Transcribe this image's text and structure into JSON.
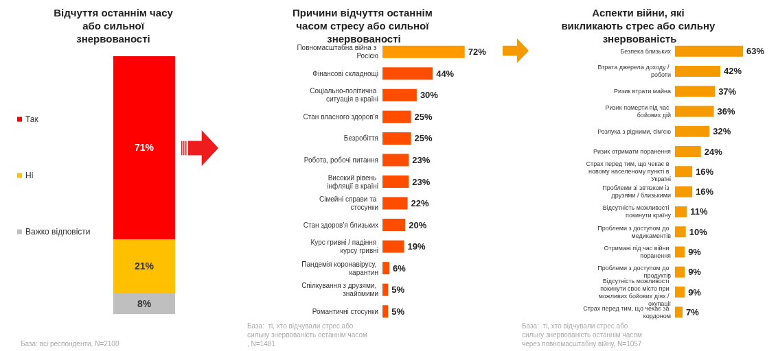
{
  "chart_data": [
    {
      "type": "bar",
      "title": "Відчуття останнім часу або сильної знервованості",
      "categories": [
        null
      ],
      "stacked": true,
      "legend": "left",
      "series": [
        {
          "name": "Важко відповісти",
          "color": "#bfbfbf",
          "values": [
            8
          ],
          "value_labels": [
            "8%"
          ]
        },
        {
          "name": "Ні",
          "color": "#ffc000",
          "values": [
            21
          ],
          "value_labels": [
            "21%"
          ]
        },
        {
          "name": "Так",
          "color": "#ff0000",
          "values": [
            71
          ],
          "value_labels": [
            "71%"
          ]
        }
      ],
      "annotations": [
        "База: всі респонденти, N=2100"
      ]
    },
    {
      "type": "bar",
      "orientation": "horizontal",
      "title": "Причини відчуття останнім часом стресу або сильної знервованості",
      "categories": [
        "Повномасштабна війна з Росією",
        "Фінансові складнощі",
        "Соціально-політична ситуація в країні",
        "Стан власного здоров'я",
        "Безробіття",
        "Робота, робочі питання",
        "Високий рівень інфляції в країні",
        "Сімейні справи та стосунки",
        "Стан здоров'я близьких",
        "Курс гривні / падіння курсу гривні",
        "Пандемія коронавірусу, карантин",
        "Спілкування з друзями, знайомими",
        "Романтичні стосунки"
      ],
      "values": [
        72,
        44,
        30,
        25,
        25,
        23,
        23,
        22,
        20,
        19,
        6,
        5,
        5
      ],
      "value_labels": [
        "72%",
        "44%",
        "30%",
        "25%",
        "25%",
        "23%",
        "23%",
        "22%",
        "20%",
        "19%",
        "6%",
        "5%",
        "5%"
      ],
      "colors": [
        "#ff9900",
        "#ff4d00",
        "#ff4d00",
        "#ff4d00",
        "#ff4d00",
        "#ff4d00",
        "#ff4d00",
        "#ff4d00",
        "#ff4d00",
        "#ff4d00",
        "#ff4d00",
        "#ff4d00",
        "#ff4d00"
      ],
      "annotations": [
        "База:  ті, хто відчували стрес або сильну знервованість останнім часом, N=1481"
      ]
    },
    {
      "type": "bar",
      "orientation": "horizontal",
      "title": "Аспекти війни, які викликають стрес або сильну знервованість",
      "categories": [
        "Безпека близьких",
        "Втрата джерела доходу / роботи",
        "Ризик втрати майна",
        "Ризик померти під час бойових дій",
        "Розлука з рідними, сім'єю",
        "Ризик отримати поранення",
        "Страх перед тим, що чекає в новому населеному пункті в Україні",
        "Проблеми зі зв'язком із друзями / близькими",
        "Відсутність можливості покинути країну",
        "Проблеми з доступом до медикаментів",
        "Отримані під час війни поранення",
        "Проблеми з доступом до продуктів",
        "Відсутність можливості покинути своє місто при можливих бойових діях / окупації",
        "Страх перед тим, що чекає за кордоном"
      ],
      "values": [
        63,
        42,
        37,
        36,
        32,
        24,
        16,
        16,
        11,
        10,
        9,
        9,
        9,
        7
      ],
      "value_labels": [
        "63%",
        "42%",
        "37%",
        "36%",
        "32%",
        "24%",
        "16%",
        "16%",
        "11%",
        "10%",
        "9%",
        "9%",
        "9%",
        "7%"
      ],
      "color": "#f59a00",
      "annotations": [
        "База:  ті, хто відчували стрес або сильну знервованість останнім часом через повномасштабну війну, N=1057"
      ]
    }
  ]
}
